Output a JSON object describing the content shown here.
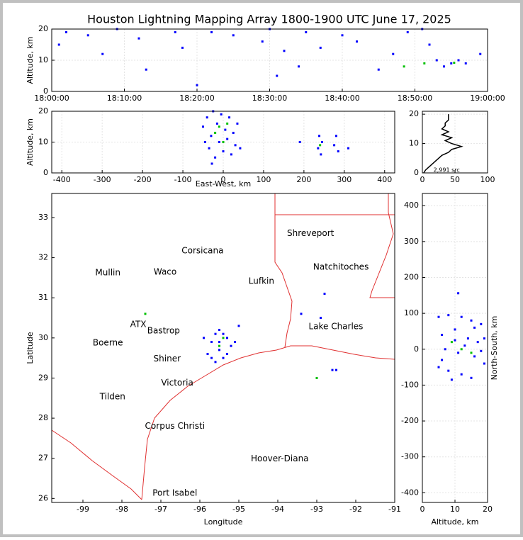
{
  "title": "Houston Lightning Mapping Array 1800-1900 UTC June 17, 2025",
  "chart_data": [
    {
      "type": "scatter",
      "ylabel": "Altitude, km",
      "grid": true,
      "xlim": [
        0,
        60
      ],
      "ylim": [
        0,
        20
      ],
      "xticks": [
        {
          "value": 0,
          "label": "18:00:00"
        },
        {
          "value": 10,
          "label": "18:10:00"
        },
        {
          "value": 20,
          "label": "18:20:00"
        },
        {
          "value": 30,
          "label": "18:30:00"
        },
        {
          "value": 40,
          "label": "18:40:00"
        },
        {
          "value": 50,
          "label": "18:50:00"
        },
        {
          "value": 60,
          "label": "19:00:00"
        }
      ],
      "yticks": [
        0,
        10,
        20
      ],
      "series": [
        {
          "color": "#0000ff",
          "x": [
            1,
            2,
            5,
            7,
            9,
            12,
            13,
            17,
            18,
            20,
            22,
            25,
            29,
            30,
            31,
            32,
            34,
            35,
            37,
            40,
            42,
            45,
            47,
            49,
            51,
            52,
            53,
            54,
            55,
            56,
            57,
            59
          ],
          "values": [
            15,
            19,
            18,
            12,
            20,
            17,
            7,
            19,
            14,
            2,
            19,
            18,
            16,
            20,
            5,
            13,
            8,
            19,
            14,
            18,
            16,
            7,
            12,
            19,
            20,
            15,
            10,
            8,
            9,
            10,
            9,
            12
          ]
        },
        {
          "color": "#00c000",
          "x": [
            48.5,
            51.3,
            55.4
          ],
          "values": [
            8,
            9,
            9.2
          ]
        }
      ]
    },
    {
      "type": "scatter",
      "xlabel": "East-West, km",
      "ylabel": "Altitude, km",
      "grid": true,
      "xlim": [
        -425,
        425
      ],
      "ylim": [
        0,
        20
      ],
      "xticks": [
        -400,
        -300,
        -200,
        -100,
        0,
        100,
        200,
        300,
        400
      ],
      "yticks": [
        0,
        10,
        20
      ],
      "series": [
        {
          "color": "#0000ff",
          "x": [
            -50,
            -40,
            -35,
            -30,
            -25,
            -20,
            -15,
            -10,
            -5,
            0,
            5,
            10,
            15,
            20,
            25,
            30,
            -45,
            -28,
            35,
            42,
            190,
            235,
            238,
            242,
            245,
            275,
            280,
            285,
            310
          ],
          "values": [
            15,
            18,
            8,
            12,
            20,
            5,
            16,
            10,
            19,
            7,
            14,
            11,
            18,
            6,
            13,
            9,
            10,
            3,
            16,
            8,
            10,
            8,
            12,
            6,
            10,
            9,
            12,
            7,
            8
          ]
        },
        {
          "color": "#00c000",
          "x": [
            -20,
            -10,
            0,
            10,
            240
          ],
          "values": [
            13,
            15,
            10,
            16,
            9
          ]
        }
      ]
    },
    {
      "type": "line",
      "grid": true,
      "xlim": [
        0,
        100
      ],
      "ylim": [
        0,
        21
      ],
      "xticks": [
        0,
        50,
        100
      ],
      "yticks": [
        0,
        10,
        20
      ],
      "series": [
        {
          "color": "#000000",
          "x": [
            2,
            5,
            10,
            15,
            20,
            25,
            30,
            40,
            45,
            60,
            45,
            35,
            45,
            30,
            40,
            30,
            35,
            35,
            40,
            40,
            40
          ],
          "values": [
            0,
            1,
            2,
            3,
            4,
            5,
            6,
            7,
            8,
            9,
            10,
            11,
            12,
            13,
            14,
            15,
            16,
            17,
            18,
            19,
            20
          ]
        }
      ],
      "annotations": [
        {
          "text": "2,991 src",
          "x": 17,
          "y": 1
        }
      ]
    },
    {
      "type": "scatter",
      "xlabel": "Longitude",
      "ylabel": "Latitude",
      "grid": false,
      "xlim": [
        -99.8,
        -91
      ],
      "ylim": [
        25.9,
        33.6
      ],
      "xticks": [
        -99,
        -98,
        -97,
        -96,
        -95,
        -94,
        -93,
        -92,
        -91
      ],
      "yticks": [
        26,
        27,
        28,
        29,
        30,
        31,
        32,
        33
      ],
      "series": [
        {
          "color": "#0000ff",
          "x": [
            -95.7,
            -95.6,
            -95.5,
            -95.4,
            -95.3,
            -95.5,
            -95.8,
            -95.2,
            -95.6,
            -95.4,
            -95.5,
            -95.3,
            -95.7,
            -95.9,
            -95.1,
            -93.0,
            -92.6,
            -92.5,
            -92.9,
            -95.0,
            -92.8,
            -93.4
          ],
          "values": [
            29.9,
            30.1,
            29.7,
            29.5,
            30.0,
            30.2,
            29.6,
            29.8,
            29.4,
            30.1,
            29.9,
            29.6,
            29.5,
            30.0,
            29.9,
            29.0,
            29.2,
            29.2,
            30.5,
            30.3,
            31.1,
            30.6
          ]
        },
        {
          "color": "#00c000",
          "x": [
            -95.5,
            -95.4,
            -97.4,
            -93.0
          ],
          "values": [
            29.8,
            30.0,
            30.6,
            29.0
          ]
        }
      ],
      "annotations": [
        {
          "text": "Shreveport",
          "x": -93.16,
          "y": 32.6
        },
        {
          "text": "Corsicana",
          "x": -95.93,
          "y": 32.17
        },
        {
          "text": "Natchitoches",
          "x": -92.38,
          "y": 31.76
        },
        {
          "text": "Waco",
          "x": -96.89,
          "y": 31.64
        },
        {
          "text": "Lufkin",
          "x": -94.42,
          "y": 31.41
        },
        {
          "text": "Mullin",
          "x": -98.36,
          "y": 31.62,
          "color": "#f08040"
        },
        {
          "text": "ATX",
          "x": -97.58,
          "y": 30.33,
          "color": "#f08040"
        },
        {
          "text": "Bastrop",
          "x": -96.93,
          "y": 30.17
        },
        {
          "text": "Lake Charles",
          "x": -92.51,
          "y": 30.28
        },
        {
          "text": "Boerne",
          "x": -98.36,
          "y": 29.87
        },
        {
          "text": "Shiner",
          "x": -96.84,
          "y": 29.48
        },
        {
          "text": "Victoria",
          "x": -96.58,
          "y": 28.88
        },
        {
          "text": "Tilden",
          "x": -98.24,
          "y": 28.53
        },
        {
          "text": "Corpus Christi",
          "x": -96.64,
          "y": 27.8
        },
        {
          "text": "Port Isabel",
          "x": -96.64,
          "y": 26.13
        },
        {
          "text": "Hoover-Diana",
          "x": -93.95,
          "y": 26.99,
          "color": "#0000dd"
        }
      ]
    },
    {
      "type": "scatter",
      "xlabel": "Altitude, km",
      "ylabel": "North-South, km",
      "ylabel_side": "right",
      "grid": true,
      "xlim": [
        0,
        20
      ],
      "ylim": [
        -427,
        434
      ],
      "xticks": [
        0,
        10,
        20
      ],
      "yticks": [
        -400,
        -300,
        -200,
        -100,
        0,
        100,
        200,
        300,
        400
      ],
      "series": [
        {
          "color": "#0000ff",
          "x": [
            5,
            8,
            12,
            15,
            18,
            6,
            10,
            14,
            17,
            7,
            11,
            16,
            19,
            8,
            12,
            15,
            9,
            5,
            13,
            18,
            10,
            16,
            6,
            19,
            11
          ],
          "values": [
            90,
            95,
            90,
            80,
            70,
            40,
            55,
            30,
            20,
            0,
            -10,
            -20,
            -40,
            -60,
            -70,
            -80,
            -85,
            -50,
            10,
            -5,
            25,
            60,
            -30,
            30,
            156
          ]
        },
        {
          "color": "#00c000",
          "x": [
            12,
            15,
            9
          ],
          "values": [
            0,
            -10,
            20
          ]
        }
      ]
    }
  ]
}
